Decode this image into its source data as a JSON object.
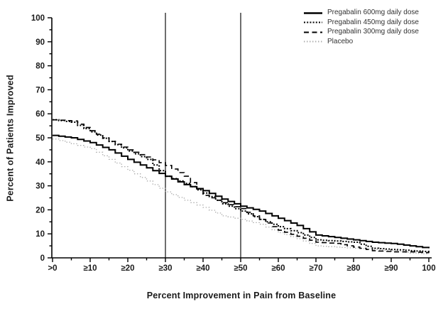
{
  "chart_data": {
    "type": "line",
    "subtype": "step-responder-curves",
    "title": "",
    "xlabel": "Percent Improvement in Pain from Baseline",
    "ylabel": "Percent of Patients Improved",
    "xlim": [
      0,
      100
    ],
    "ylim": [
      0,
      100
    ],
    "x_tick_labels": [
      ">0",
      "≥10",
      "≥20",
      "≥30",
      "≥40",
      "≥50",
      "≥60",
      "≥70",
      "≥80",
      "≥90",
      "100"
    ],
    "x_tick_values": [
      0,
      10,
      20,
      30,
      40,
      50,
      60,
      70,
      80,
      90,
      100
    ],
    "y_tick_values": [
      0,
      10,
      20,
      30,
      40,
      50,
      60,
      70,
      80,
      90,
      100
    ],
    "minor_tick_step": 5,
    "grid": false,
    "reference_lines_x": [
      30,
      50
    ],
    "reference_line_color": "#4a4a4a",
    "axis_color": "#000000",
    "legend_position": "top-right",
    "x": [
      0,
      5,
      10,
      15,
      20,
      25,
      30,
      35,
      40,
      45,
      50,
      55,
      60,
      65,
      70,
      75,
      80,
      85,
      90,
      95,
      100
    ],
    "series": [
      {
        "name": "Pregabalin 600mg daily dose",
        "color": "#000000",
        "line_style": "solid",
        "line_width": 2,
        "values": [
          51,
          50,
          48,
          45,
          41,
          37.5,
          34,
          30.5,
          28,
          24.5,
          21.5,
          19.5,
          16.5,
          13.5,
          9.5,
          8.5,
          7.5,
          6.5,
          6,
          5,
          4
        ]
      },
      {
        "name": "Pregabalin 450mg daily dose",
        "color": "#000000",
        "line_style": "dotted",
        "line_width": 2,
        "values": [
          57.5,
          56.5,
          52.5,
          48.5,
          44.5,
          41,
          34,
          31,
          27,
          22.5,
          19.5,
          16,
          13,
          10.5,
          7.5,
          7,
          6.5,
          4,
          3.5,
          3,
          2.5
        ]
      },
      {
        "name": "Pregabalin 300mg daily dose",
        "color": "#000000",
        "line_style": "dashed",
        "line_width": 1.6,
        "values": [
          57.5,
          57,
          53,
          48.5,
          45,
          42,
          38.5,
          34,
          26,
          23,
          20.5,
          16,
          11.5,
          9,
          6.5,
          6,
          4.5,
          3,
          2.5,
          2.5,
          2
        ]
      },
      {
        "name": "Placebo",
        "color": "#ababab",
        "line_style": "fine-dotted",
        "line_width": 1.3,
        "values": [
          49.5,
          47.5,
          45.5,
          41,
          36.5,
          32,
          27.5,
          24,
          21,
          17.5,
          16,
          14,
          10.5,
          8,
          5,
          4.5,
          4,
          3.5,
          3,
          2,
          1.5
        ]
      }
    ]
  }
}
